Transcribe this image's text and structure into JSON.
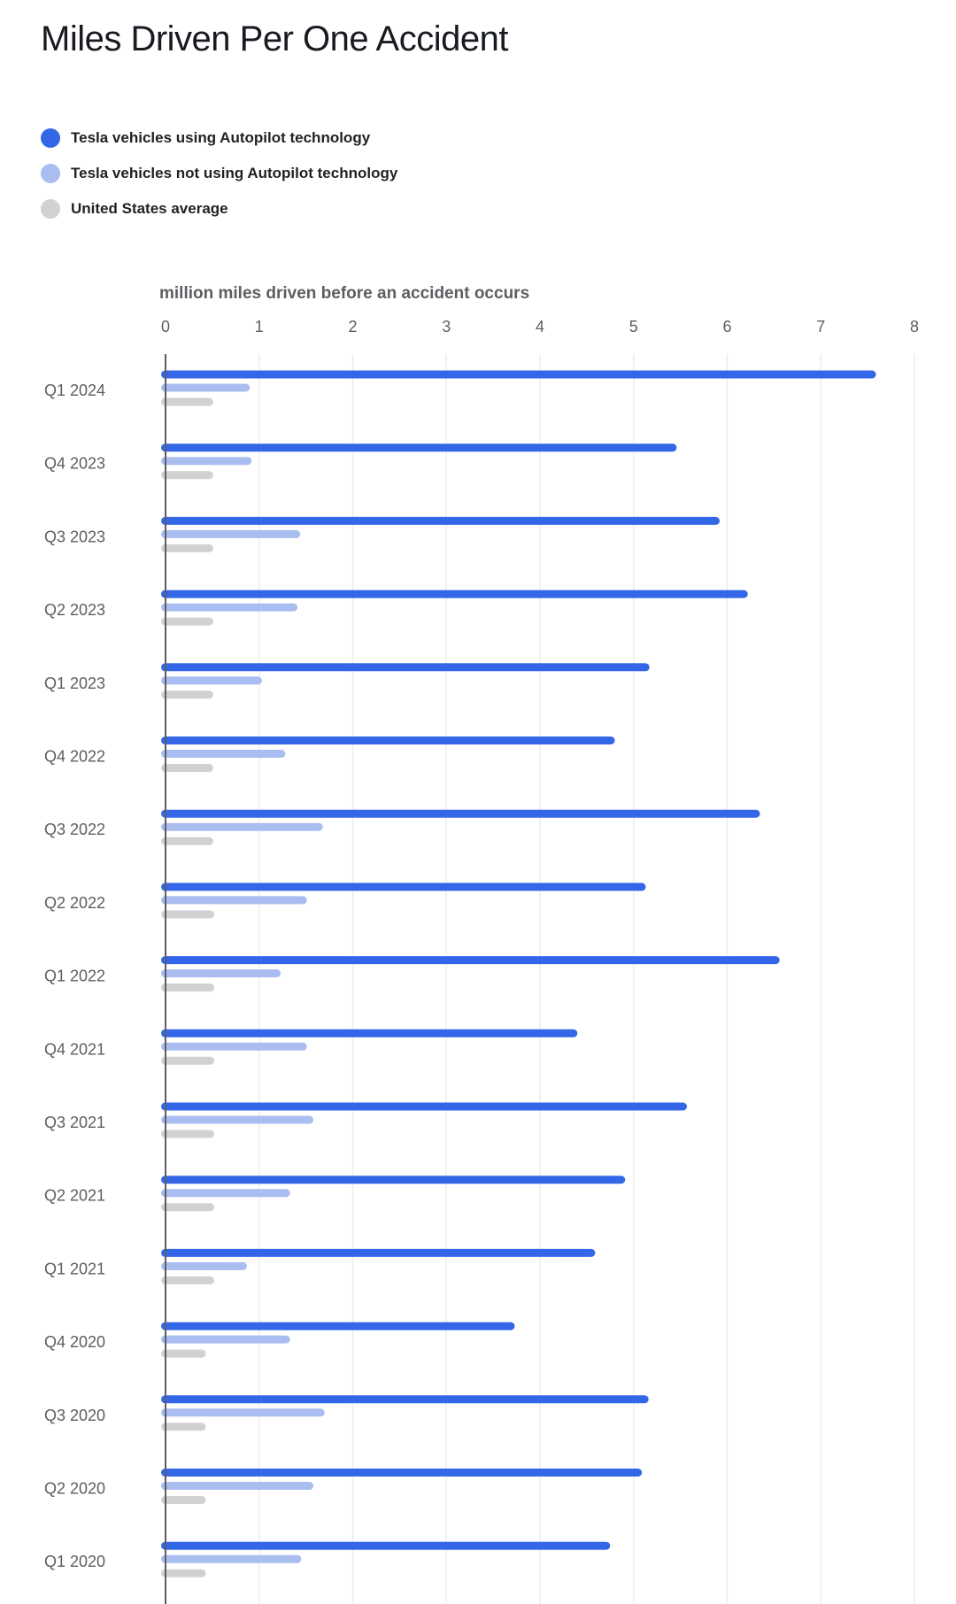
{
  "chart_data": {
    "type": "bar",
    "orientation": "horizontal",
    "title": "Miles Driven Per One Accident",
    "xlabel": "million miles driven before an accident occurs",
    "ylabel": "",
    "xlim": [
      0,
      8
    ],
    "xticks": [
      "0",
      "1",
      "2",
      "3",
      "4",
      "5",
      "6",
      "7",
      "8"
    ],
    "grid": true,
    "legend_placement": "top-left",
    "categories": [
      "Q1 2024",
      "Q4 2023",
      "Q3 2023",
      "Q2 2023",
      "Q1 2023",
      "Q4 2022",
      "Q3 2022",
      "Q2 2022",
      "Q1 2022",
      "Q4 2021",
      "Q3 2021",
      "Q2 2021",
      "Q1 2021",
      "Q4 2020",
      "Q3 2020",
      "Q2 2020",
      "Q1 2020"
    ],
    "series": [
      {
        "name": "Tesla vehicles using Autopilot technology",
        "color": "#3467e8",
        "values": [
          7.59,
          5.46,
          5.92,
          6.22,
          5.17,
          4.8,
          6.35,
          5.13,
          6.56,
          4.4,
          5.57,
          4.91,
          4.59,
          3.73,
          5.16,
          5.09,
          4.75
        ]
      },
      {
        "name": "Tesla vehicles not using Autopilot technology",
        "color": "#aabdf0",
        "values": [
          0.9,
          0.92,
          1.44,
          1.41,
          1.03,
          1.28,
          1.68,
          1.51,
          1.23,
          1.51,
          1.58,
          1.33,
          0.87,
          1.33,
          1.7,
          1.58,
          1.45
        ]
      },
      {
        "name": "United States average",
        "color": "#d1d1d3",
        "values": [
          0.51,
          0.51,
          0.51,
          0.51,
          0.51,
          0.51,
          0.51,
          0.52,
          0.52,
          0.52,
          0.52,
          0.52,
          0.52,
          0.43,
          0.43,
          0.43,
          0.43
        ]
      }
    ]
  }
}
